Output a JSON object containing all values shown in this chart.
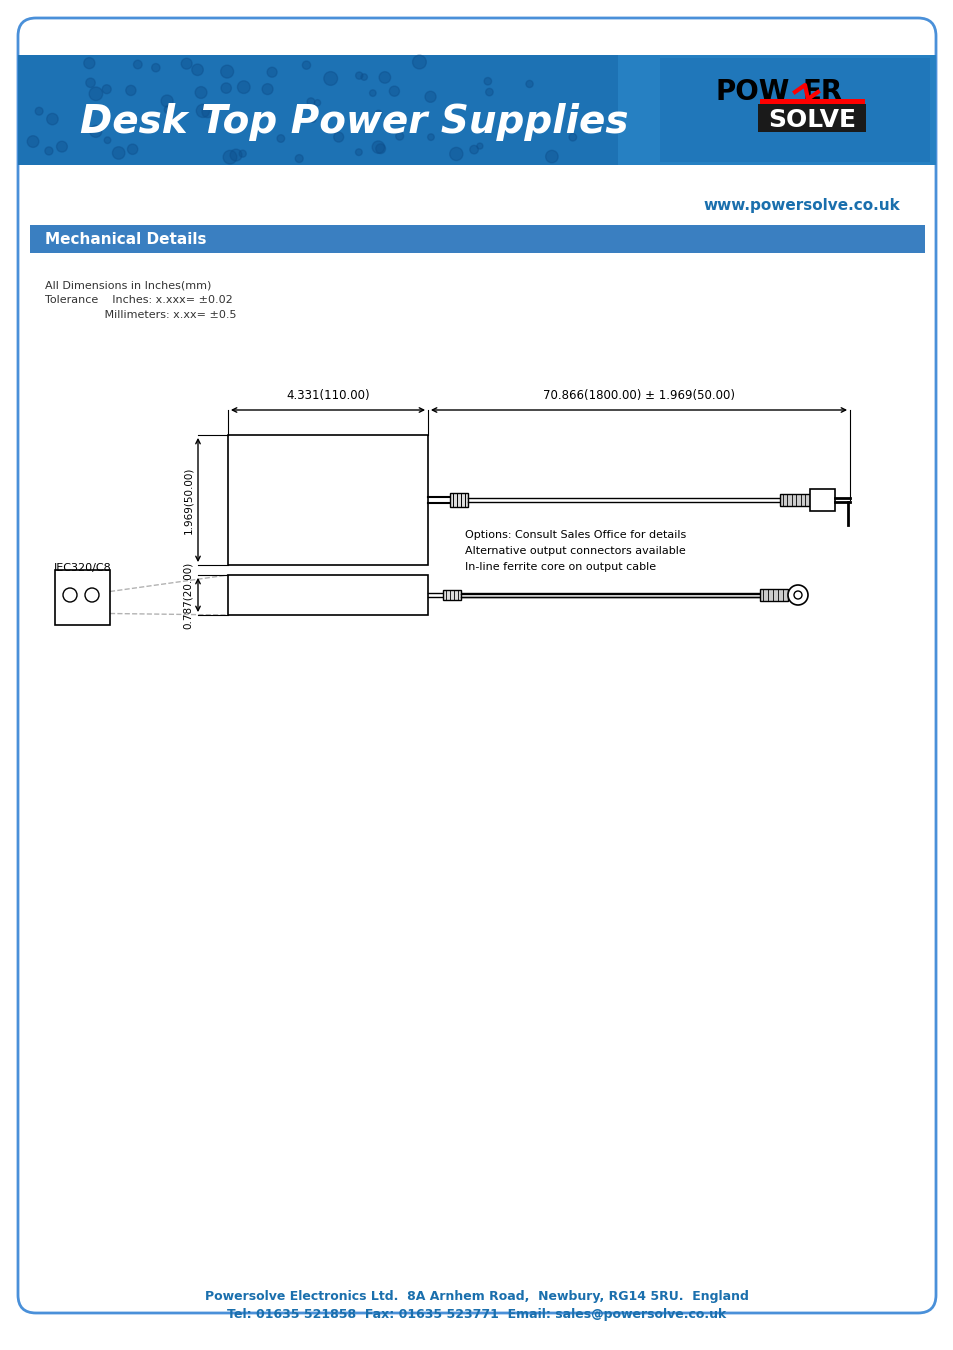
{
  "page_bg": "#ffffff",
  "border_color": "#4a90d9",
  "header_bg_left": "#1a6fad",
  "header_title": "Desk Top Power Supplies",
  "header_title_color": "#ffffff",
  "website": "www.powersolve.co.uk",
  "website_color": "#1a6fad",
  "section_bar_color": "#3a7fc1",
  "section_title": "Mechanical Details",
  "section_title_color": "#ffffff",
  "tolerance_lines": [
    "All Dimensions in Inches(mm)",
    "Tolerance    Inches: x.xxx= ±0.02",
    "                 Millimeters: x.xx= ±0.5"
  ],
  "dim_label_1": "4.331(110.00)",
  "dim_label_2": "70.866(1800.00) ± 1.969(50.00)",
  "dim_label_3": "1.969(50.00)",
  "dim_label_4": "0.787(20.00)",
  "iec_label": "IEC320/C8",
  "options_lines": [
    "Options: Consult Sales Office for details",
    "Alternative output connectors available",
    "In-line ferrite core on output cable"
  ],
  "footer_line1": "Powersolve Electronics Ltd.  8A Arnhem Road,  Newbury, RG14 5RU.  England",
  "footer_line2": "Tel: 01635 521858  Fax: 01635 523771  Email: sales@powersolve.co.uk",
  "footer_color": "#1a6fad",
  "dim_color": "#000000",
  "line_color": "#000000"
}
